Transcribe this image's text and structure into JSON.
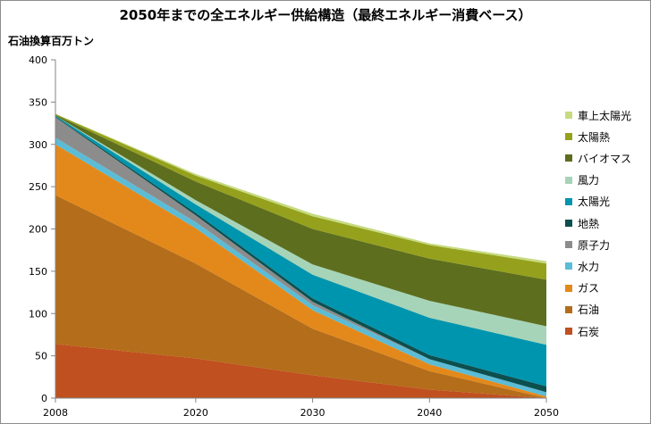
{
  "chart_data": {
    "type": "area",
    "stacked": true,
    "title": "2050年までの全エネルギー供給構造（最終エネルギー消費ベース）",
    "ylabel": "石油換算百万トン",
    "xlabel": "",
    "x": [
      2008,
      2020,
      2030,
      2040,
      2050
    ],
    "ylim": [
      0,
      400
    ],
    "yticks": [
      0,
      50,
      100,
      150,
      200,
      250,
      300,
      350,
      400
    ],
    "grid": false,
    "legend_position": "right",
    "series": [
      {
        "name": "石炭",
        "color": "#c0501f",
        "values": [
          64,
          47,
          27,
          10,
          0
        ]
      },
      {
        "name": "石油",
        "color": "#b46d1a",
        "values": [
          176,
          112,
          55,
          22,
          0
        ]
      },
      {
        "name": "ガス",
        "color": "#e3891b",
        "values": [
          60,
          42,
          22,
          8,
          2
        ]
      },
      {
        "name": "水力",
        "color": "#5bbcd6",
        "values": [
          8,
          7,
          6,
          6,
          5
        ]
      },
      {
        "name": "原子力",
        "color": "#8c8c8c",
        "values": [
          24,
          8,
          4,
          0,
          0
        ]
      },
      {
        "name": "地熱",
        "color": "#0d4f4f",
        "values": [
          1,
          3,
          4,
          5,
          7
        ]
      },
      {
        "name": "太陽光",
        "color": "#0095ae",
        "values": [
          1,
          10,
          28,
          44,
          49
        ]
      },
      {
        "name": "風力",
        "color": "#a6d4b8",
        "values": [
          0,
          5,
          12,
          20,
          22
        ]
      },
      {
        "name": "バイオマス",
        "color": "#5d6e1e",
        "values": [
          1,
          22,
          42,
          50,
          55
        ]
      },
      {
        "name": "太陽熱",
        "color": "#95a11c",
        "values": [
          1,
          7,
          15,
          16,
          19
        ]
      },
      {
        "name": "車上太陽光",
        "color": "#c6db7f",
        "values": [
          0,
          2,
          3,
          2,
          3
        ]
      }
    ]
  }
}
